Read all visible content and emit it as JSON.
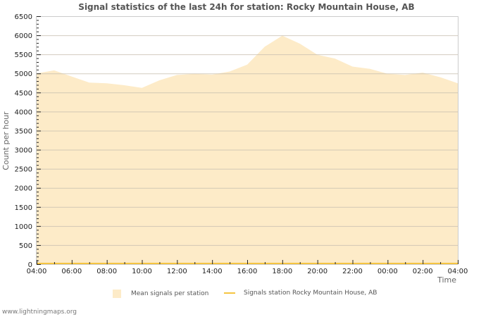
{
  "chart_data": {
    "type": "area",
    "title": "Signal statistics of the last 24h for station: Rocky Mountain House, AB",
    "xlabel": "Time",
    "ylabel": "Count per hour",
    "ylim": [
      0,
      6500
    ],
    "yticks": [
      0,
      500,
      1000,
      1500,
      2000,
      2500,
      3000,
      3500,
      4000,
      4500,
      5000,
      5500,
      6000,
      6500
    ],
    "xtick_labels": [
      "04:00",
      "06:00",
      "08:00",
      "10:00",
      "12:00",
      "14:00",
      "16:00",
      "18:00",
      "20:00",
      "22:00",
      "00:00",
      "02:00",
      "04:00"
    ],
    "grid": true,
    "legend_position": "bottom",
    "x": [
      "04:00",
      "05:00",
      "06:00",
      "07:00",
      "08:00",
      "09:00",
      "10:00",
      "11:00",
      "12:00",
      "13:00",
      "14:00",
      "15:00",
      "16:00",
      "17:00",
      "18:00",
      "19:00",
      "20:00",
      "21:00",
      "22:00",
      "23:00",
      "00:00",
      "01:00",
      "02:00",
      "03:00",
      "04:00"
    ],
    "series": [
      {
        "name": "Mean signals per station",
        "type": "area",
        "color": "#fdebc8",
        "values": [
          5000,
          5080,
          4920,
          4760,
          4740,
          4690,
          4620,
          4820,
          4960,
          4990,
          4970,
          5050,
          5230,
          5700,
          5990,
          5780,
          5490,
          5390,
          5180,
          5120,
          4990,
          4960,
          5020,
          4900,
          4740
        ]
      },
      {
        "name": "Signals station Rocky Mountain House, AB",
        "type": "line",
        "color": "#f5c542",
        "values": [
          0,
          0,
          0,
          0,
          0,
          0,
          0,
          0,
          0,
          0,
          0,
          0,
          0,
          0,
          0,
          0,
          0,
          0,
          0,
          0,
          0,
          0,
          0,
          0,
          0
        ]
      }
    ]
  },
  "legend": {
    "items": [
      {
        "label": "Mean signals per station",
        "color": "#fdebc8"
      },
      {
        "label": "Signals station Rocky Mountain House, AB",
        "color": "#f5c542"
      }
    ]
  },
  "footer": "www.lightningmaps.org"
}
